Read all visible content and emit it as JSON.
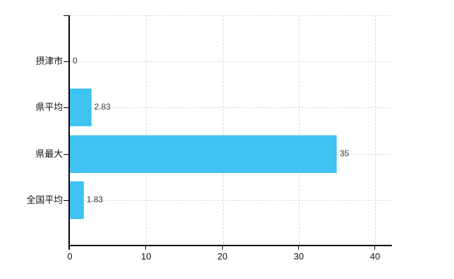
{
  "chart_data": {
    "type": "bar",
    "orientation": "horizontal",
    "title": "",
    "xlabel": "",
    "ylabel": "",
    "categories": [
      "摂津市",
      "県平均",
      "県最大",
      "全国平均"
    ],
    "values": [
      0,
      2.83,
      35,
      1.83
    ],
    "value_labels": [
      "0",
      "2.83",
      "35",
      "1.83"
    ],
    "x_ticks": [
      0,
      10,
      20,
      30,
      40
    ],
    "x_tick_labels": [
      "0",
      "10",
      "20",
      "30",
      "40"
    ],
    "xlim": [
      0,
      42.1
    ],
    "grid": true,
    "legend": false,
    "colors": {
      "bar": "#3EC3F2",
      "grid": "#d6dbd6",
      "axis": "#000000",
      "tick_label": "#111111",
      "value_label": "#3a3a3a",
      "background": "#ffffff"
    }
  }
}
